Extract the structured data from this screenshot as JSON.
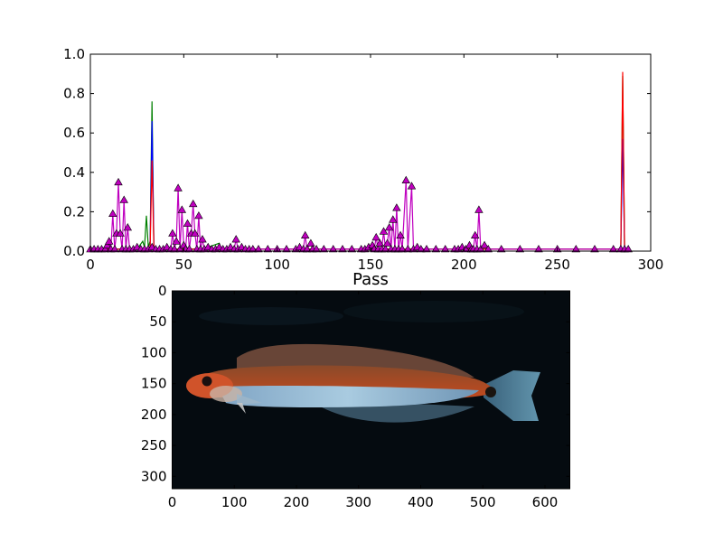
{
  "chart_data": [
    {
      "type": "line",
      "xlim": [
        0,
        300
      ],
      "ylim": [
        0,
        1.0
      ],
      "x_ticks": [
        "0",
        "50",
        "100",
        "150",
        "200",
        "250",
        "300"
      ],
      "y_ticks": [
        "0.0",
        "0.2",
        "0.4",
        "0.6",
        "0.8",
        "1.0"
      ],
      "grid": false,
      "series": [
        {
          "color": "#008000",
          "points": [
            [
              0,
              0.01
            ],
            [
              10,
              0.01
            ],
            [
              25,
              0.01
            ],
            [
              28,
              0.05
            ],
            [
              29,
              0.02
            ],
            [
              30,
              0.18
            ],
            [
              31,
              0.02
            ],
            [
              32,
              0.05
            ],
            [
              33,
              0.76
            ],
            [
              34,
              0.01
            ],
            [
              60,
              0.01
            ],
            [
              69,
              0.04
            ],
            [
              70,
              0.01
            ],
            [
              284,
              0.01
            ],
            [
              285,
              0.89
            ],
            [
              286,
              0.01
            ],
            [
              288,
              0.01
            ]
          ]
        },
        {
          "color": "#0000ff",
          "points": [
            [
              0,
              0.01
            ],
            [
              32,
              0.01
            ],
            [
              33,
              0.66
            ],
            [
              34,
              0.01
            ],
            [
              284,
              0.01
            ],
            [
              285,
              0.57
            ],
            [
              286,
              0.01
            ],
            [
              288,
              0.01
            ]
          ]
        },
        {
          "color": "#ff0000",
          "points": [
            [
              0,
              0.01
            ],
            [
              32,
              0.01
            ],
            [
              33,
              0.46
            ],
            [
              34,
              0.01
            ],
            [
              284,
              0.01
            ],
            [
              285,
              0.91
            ],
            [
              286,
              0.01
            ],
            [
              288,
              0.01
            ]
          ]
        },
        {
          "color": "#bf00bf",
          "marker": "triangle",
          "marker_fill": "#bf00bf",
          "points": [
            [
              0,
              0.01
            ],
            [
              2,
              0.01
            ],
            [
              4,
              0.01
            ],
            [
              6,
              0.01
            ],
            [
              8,
              0.01
            ],
            [
              9,
              0.03
            ],
            [
              10,
              0.05
            ],
            [
              11,
              0.01
            ],
            [
              12,
              0.19
            ],
            [
              13,
              0.01
            ],
            [
              14,
              0.09
            ],
            [
              15,
              0.35
            ],
            [
              16,
              0.09
            ],
            [
              17,
              0.01
            ],
            [
              18,
              0.26
            ],
            [
              19,
              0.01
            ],
            [
              20,
              0.12
            ],
            [
              21,
              0.01
            ],
            [
              23,
              0.01
            ],
            [
              25,
              0.02
            ],
            [
              27,
              0.01
            ],
            [
              29,
              0.01
            ],
            [
              31,
              0.01
            ],
            [
              33,
              0.02
            ],
            [
              35,
              0.01
            ],
            [
              37,
              0.01
            ],
            [
              39,
              0.01
            ],
            [
              41,
              0.02
            ],
            [
              43,
              0.01
            ],
            [
              44,
              0.09
            ],
            [
              45,
              0.01
            ],
            [
              46,
              0.05
            ],
            [
              47,
              0.32
            ],
            [
              48,
              0.01
            ],
            [
              49,
              0.21
            ],
            [
              50,
              0.03
            ],
            [
              51,
              0.01
            ],
            [
              52,
              0.14
            ],
            [
              53,
              0.01
            ],
            [
              54,
              0.09
            ],
            [
              55,
              0.24
            ],
            [
              56,
              0.09
            ],
            [
              57,
              0.01
            ],
            [
              58,
              0.18
            ],
            [
              59,
              0.01
            ],
            [
              60,
              0.06
            ],
            [
              61,
              0.01
            ],
            [
              63,
              0.02
            ],
            [
              65,
              0.01
            ],
            [
              67,
              0.01
            ],
            [
              69,
              0.02
            ],
            [
              71,
              0.01
            ],
            [
              73,
              0.01
            ],
            [
              75,
              0.02
            ],
            [
              77,
              0.01
            ],
            [
              78,
              0.06
            ],
            [
              79,
              0.01
            ],
            [
              81,
              0.02
            ],
            [
              83,
              0.01
            ],
            [
              85,
              0.01
            ],
            [
              87,
              0.01
            ],
            [
              90,
              0.01
            ],
            [
              95,
              0.01
            ],
            [
              100,
              0.01
            ],
            [
              105,
              0.01
            ],
            [
              110,
              0.01
            ],
            [
              112,
              0.02
            ],
            [
              114,
              0.01
            ],
            [
              115,
              0.08
            ],
            [
              116,
              0.01
            ],
            [
              118,
              0.04
            ],
            [
              119,
              0.01
            ],
            [
              121,
              0.01
            ],
            [
              125,
              0.01
            ],
            [
              130,
              0.01
            ],
            [
              135,
              0.01
            ],
            [
              140,
              0.01
            ],
            [
              145,
              0.01
            ],
            [
              147,
              0.01
            ],
            [
              149,
              0.02
            ],
            [
              151,
              0.03
            ],
            [
              152,
              0.01
            ],
            [
              153,
              0.07
            ],
            [
              154,
              0.01
            ],
            [
              155,
              0.04
            ],
            [
              156,
              0.01
            ],
            [
              157,
              0.1
            ],
            [
              158,
              0.01
            ],
            [
              159,
              0.04
            ],
            [
              160,
              0.12
            ],
            [
              161,
              0.01
            ],
            [
              162,
              0.16
            ],
            [
              163,
              0.01
            ],
            [
              164,
              0.22
            ],
            [
              165,
              0.01
            ],
            [
              166,
              0.08
            ],
            [
              167,
              0.01
            ],
            [
              169,
              0.36
            ],
            [
              170,
              0.01
            ],
            [
              172,
              0.33
            ],
            [
              173,
              0.01
            ],
            [
              175,
              0.02
            ],
            [
              177,
              0.01
            ],
            [
              180,
              0.01
            ],
            [
              185,
              0.01
            ],
            [
              190,
              0.01
            ],
            [
              195,
              0.01
            ],
            [
              197,
              0.01
            ],
            [
              199,
              0.02
            ],
            [
              201,
              0.01
            ],
            [
              203,
              0.03
            ],
            [
              204,
              0.01
            ],
            [
              205,
              0.01
            ],
            [
              206,
              0.08
            ],
            [
              207,
              0.01
            ],
            [
              208,
              0.21
            ],
            [
              209,
              0.01
            ],
            [
              211,
              0.03
            ],
            [
              213,
              0.01
            ],
            [
              220,
              0.01
            ],
            [
              230,
              0.01
            ],
            [
              240,
              0.01
            ],
            [
              250,
              0.01
            ],
            [
              260,
              0.01
            ],
            [
              270,
              0.01
            ],
            [
              280,
              0.01
            ],
            [
              284,
              0.01
            ],
            [
              286,
              0.01
            ],
            [
              288,
              0.01
            ]
          ]
        }
      ]
    },
    {
      "type": "image",
      "title": "Pass",
      "xlim": [
        0,
        640
      ],
      "ylim": [
        320,
        0
      ],
      "x_ticks": [
        "0",
        "100",
        "200",
        "300",
        "400",
        "500",
        "600"
      ],
      "y_ticks": [
        "0",
        "50",
        "100",
        "150",
        "200",
        "250",
        "300"
      ],
      "content": "photograph of a small red-backed fish with a pale blue belly stripe on a black background",
      "background_color": "#050b10",
      "body_color": "#c0491f",
      "belly_color": "#9ec3d8"
    }
  ]
}
